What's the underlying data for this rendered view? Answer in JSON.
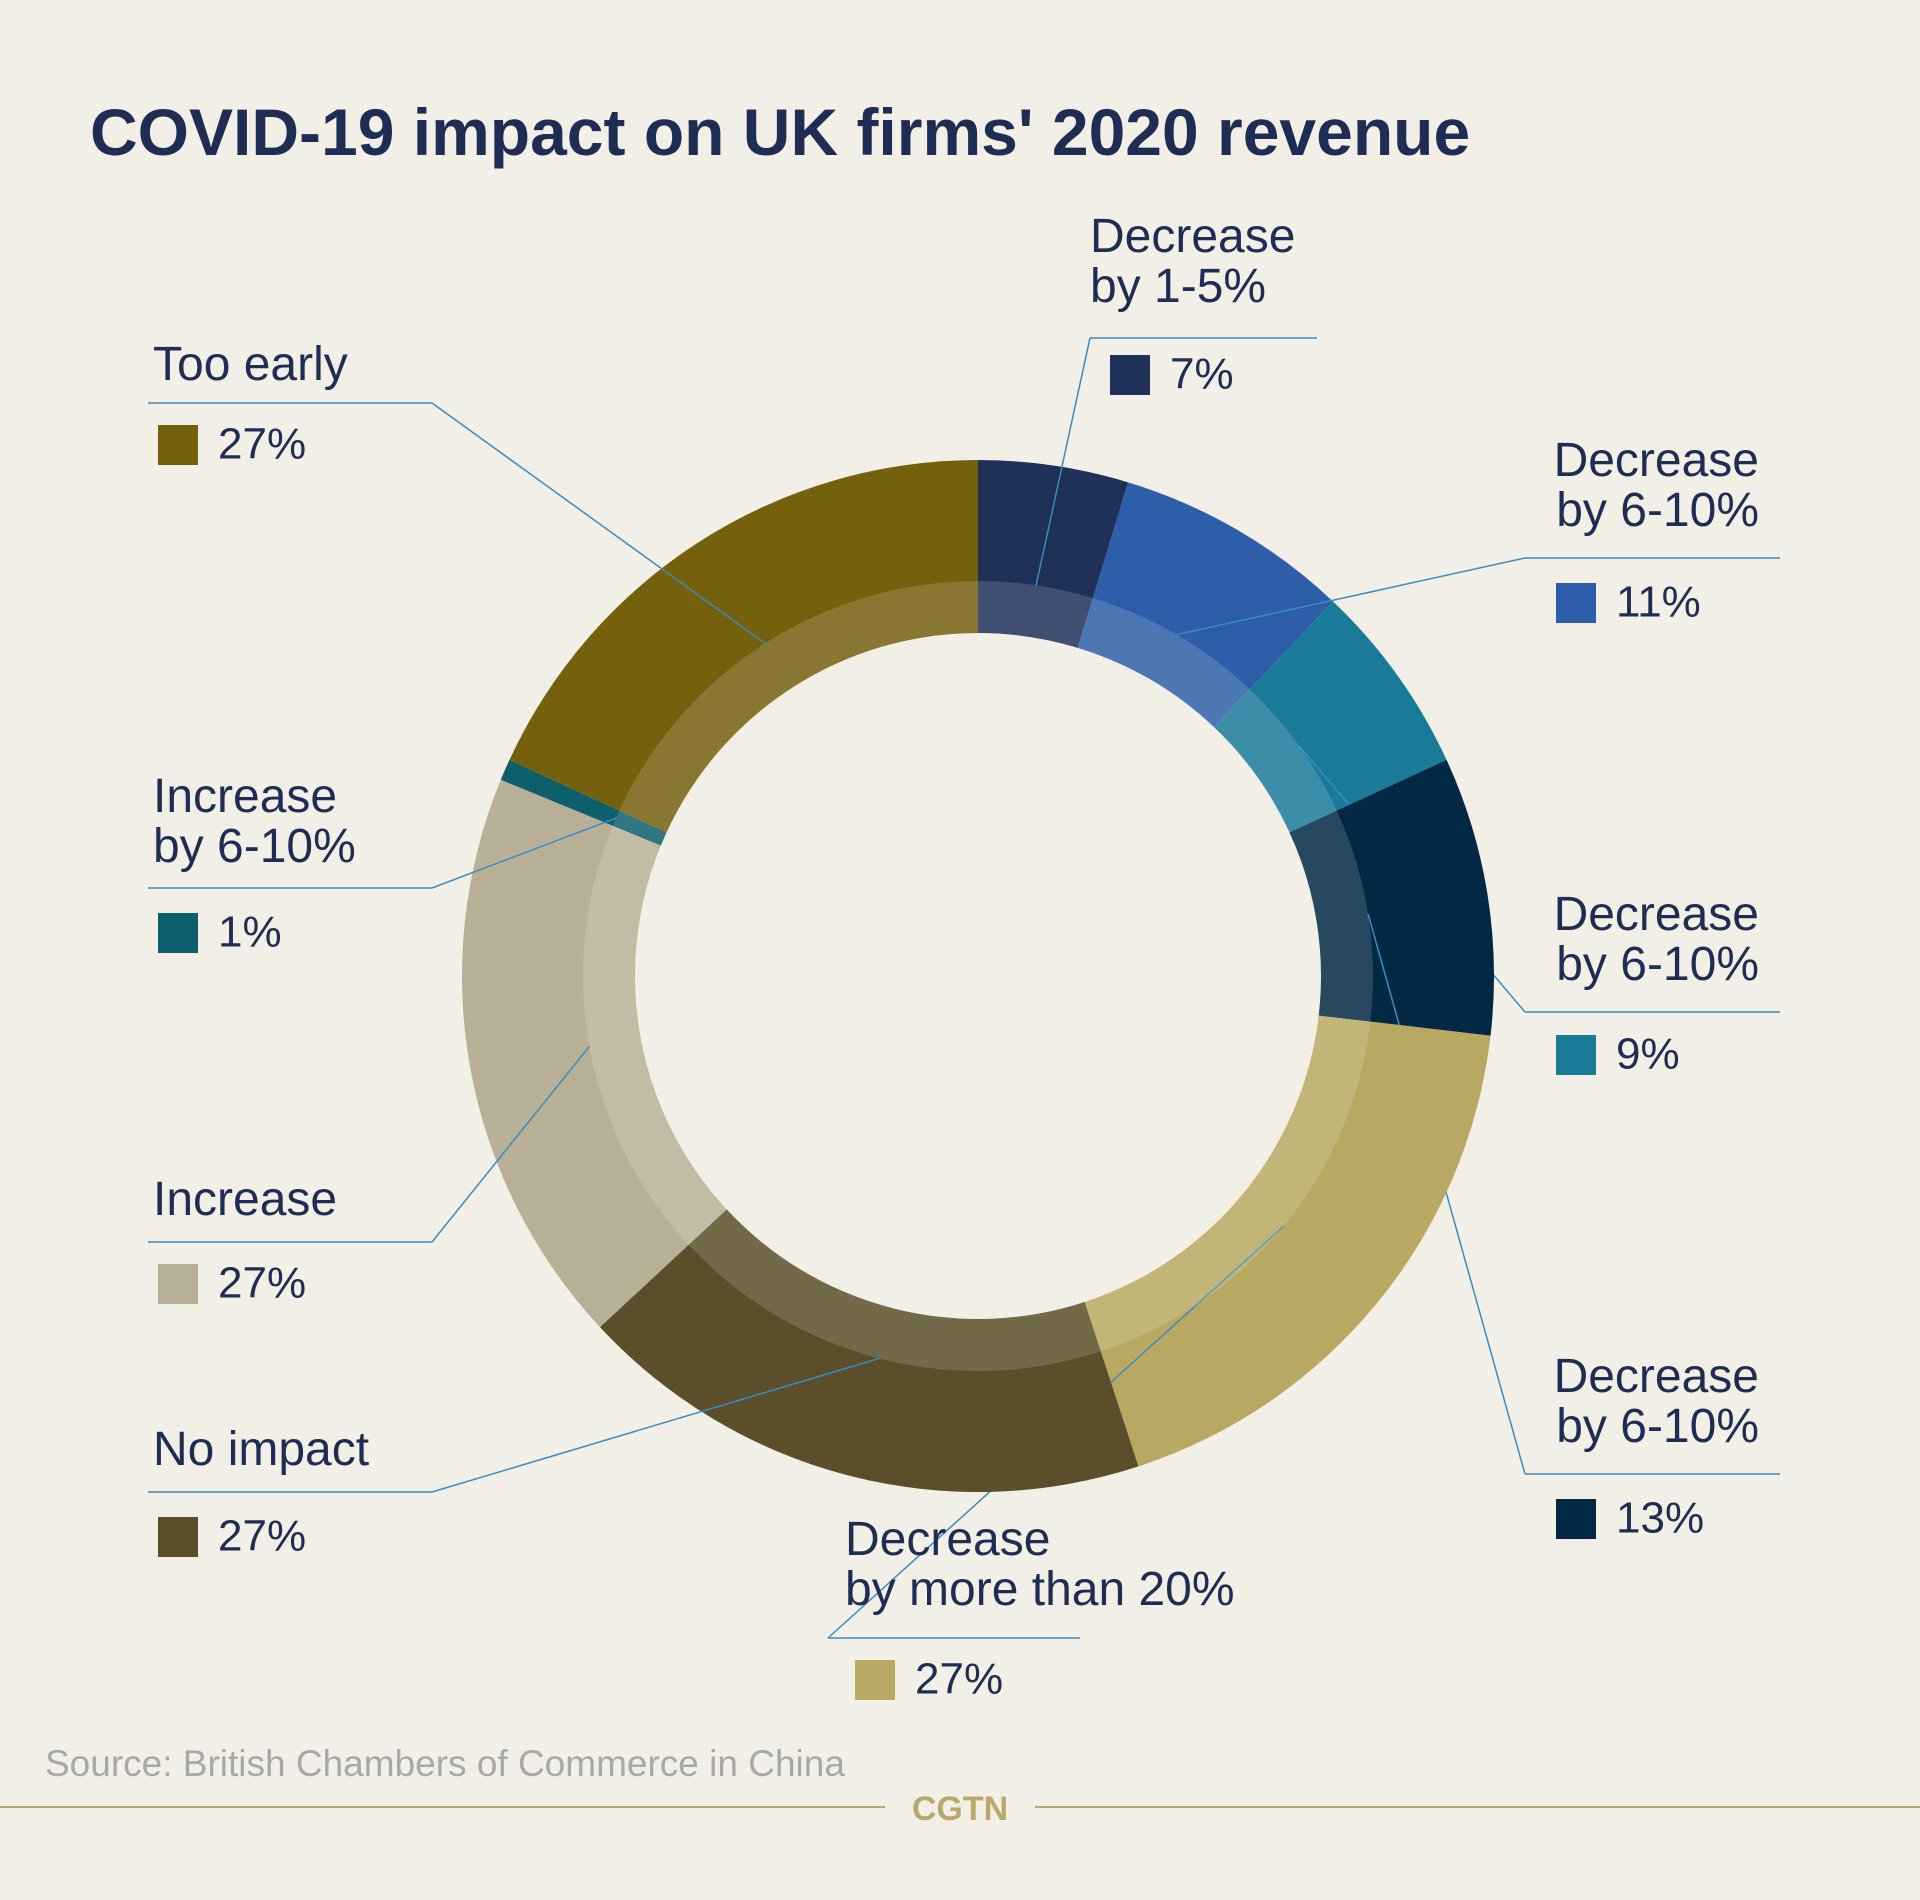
{
  "chart_data": {
    "type": "donut",
    "title": "COVID-19 impact on UK firms' 2020 revenue",
    "categories": [
      "Decrease\nby 1-5%",
      "Decrease\nby 6-10%",
      "Decrease\nby 6-10%",
      "Decrease\nby 6-10%",
      "Decrease\nby more than 20%",
      "No impact",
      "Increase",
      "Increase\nby 6-10%",
      "Too early"
    ],
    "values": [
      7,
      11,
      9,
      13,
      27,
      27,
      27,
      1,
      27
    ],
    "value_labels": [
      "7%",
      "11%",
      "9%",
      "13%",
      "27%",
      "27%",
      "27%",
      "1%",
      "27%"
    ],
    "colors": [
      "#1f3059",
      "#2e5ea9",
      "#1a7b99",
      "#022844",
      "#b8a861",
      "#5a4f2a",
      "#b8b096",
      "#0d5f6b",
      "#75600e"
    ],
    "source": "Source: British Chambers of Commerce in China",
    "logo": "CGTN"
  }
}
